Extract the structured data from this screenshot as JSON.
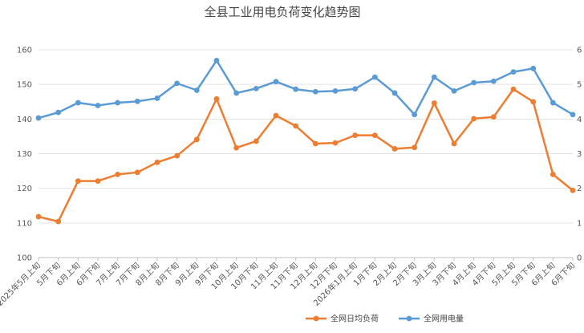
{
  "chart_data": {
    "type": "line",
    "title": "全县工业用电负荷变化趋势图",
    "categories": [
      "2025年5月上旬",
      "5月下旬",
      "6月上旬",
      "6月下旬",
      "7月上旬",
      "7月下旬",
      "8月上旬",
      "8月下旬",
      "9月上旬",
      "9月下旬",
      "10月上旬",
      "10月下旬",
      "11月上旬",
      "11月下旬",
      "12月上旬",
      "12月下旬",
      "2026年1月上旬",
      "1月下旬",
      "2月上旬",
      "2月下旬",
      "3月上旬",
      "3月下旬",
      "4月上旬",
      "4月下旬",
      "5月上旬",
      "5月下旬",
      "6月上旬",
      "6月下旬"
    ],
    "ylim_left": [
      100,
      160
    ],
    "yticks_left": [
      "100",
      "110",
      "120",
      "130",
      "140",
      "150",
      "160"
    ],
    "ylim_right": [
      0,
      6
    ],
    "yticks_right": [
      "0",
      "1",
      "2",
      "3",
      "4",
      "5",
      "6"
    ],
    "grid": true,
    "legend_position": "bottom-right",
    "series": [
      {
        "name": "全网日均负荷",
        "axis": "left",
        "color": "#ED7D31",
        "values": [
          111.8,
          110.4,
          122.1,
          122.1,
          124.0,
          124.6,
          127.5,
          129.4,
          134.1,
          145.8,
          131.7,
          133.6,
          141.0,
          138.0,
          132.9,
          133.1,
          135.3,
          135.3,
          131.4,
          131.8,
          144.6,
          132.9,
          140.1,
          140.6,
          148.6,
          145.0,
          124.0,
          119.4
        ]
      },
      {
        "name": "全网用电量",
        "axis": "right",
        "color": "#5B9BD5",
        "values": [
          4.03,
          4.19,
          4.47,
          4.39,
          4.47,
          4.51,
          4.6,
          5.03,
          4.83,
          5.69,
          4.75,
          4.88,
          5.08,
          4.86,
          4.79,
          4.81,
          4.87,
          5.21,
          4.75,
          4.13,
          5.21,
          4.81,
          5.05,
          5.09,
          5.36,
          5.46,
          4.47,
          4.13
        ]
      }
    ]
  }
}
